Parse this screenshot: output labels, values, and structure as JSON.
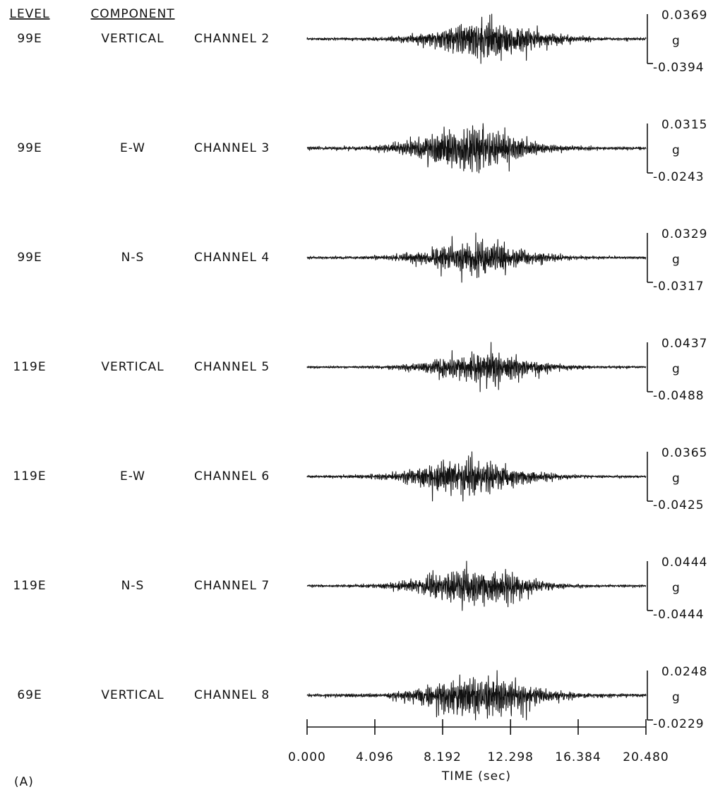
{
  "chart_data": {
    "type": "seismogram",
    "headers": {
      "level": "LEVEL",
      "component": "COMPONENT"
    },
    "unit": "g",
    "channels": [
      {
        "level": "99E",
        "component": "VERTICAL",
        "name": "CHANNEL 2",
        "max": 0.0369,
        "min": -0.0394
      },
      {
        "level": "99E",
        "component": "E-W",
        "name": "CHANNEL 3",
        "max": 0.0315,
        "min": -0.0243
      },
      {
        "level": "99E",
        "component": "N-S",
        "name": "CHANNEL 4",
        "max": 0.0329,
        "min": -0.0317
      },
      {
        "level": "119E",
        "component": "VERTICAL",
        "name": "CHANNEL 5",
        "max": 0.0437,
        "min": -0.0488
      },
      {
        "level": "119E",
        "component": "E-W",
        "name": "CHANNEL 6",
        "max": 0.0365,
        "min": -0.0425
      },
      {
        "level": "119E",
        "component": "N-S",
        "name": "CHANNEL 7",
        "max": 0.0444,
        "min": -0.0444
      },
      {
        "level": "69E",
        "component": "VERTICAL",
        "name": "CHANNEL 8",
        "max": 0.0248,
        "min": -0.0229
      }
    ],
    "xlabel": "TIME (sec)",
    "xlim": [
      0,
      20.48
    ],
    "xticks": [
      {
        "value": 0,
        "label": "0.000"
      },
      4.096,
      8.192,
      12.298,
      16.384,
      {
        "value": 20.48,
        "label": "20.480"
      }
    ],
    "panel": "(A)"
  }
}
